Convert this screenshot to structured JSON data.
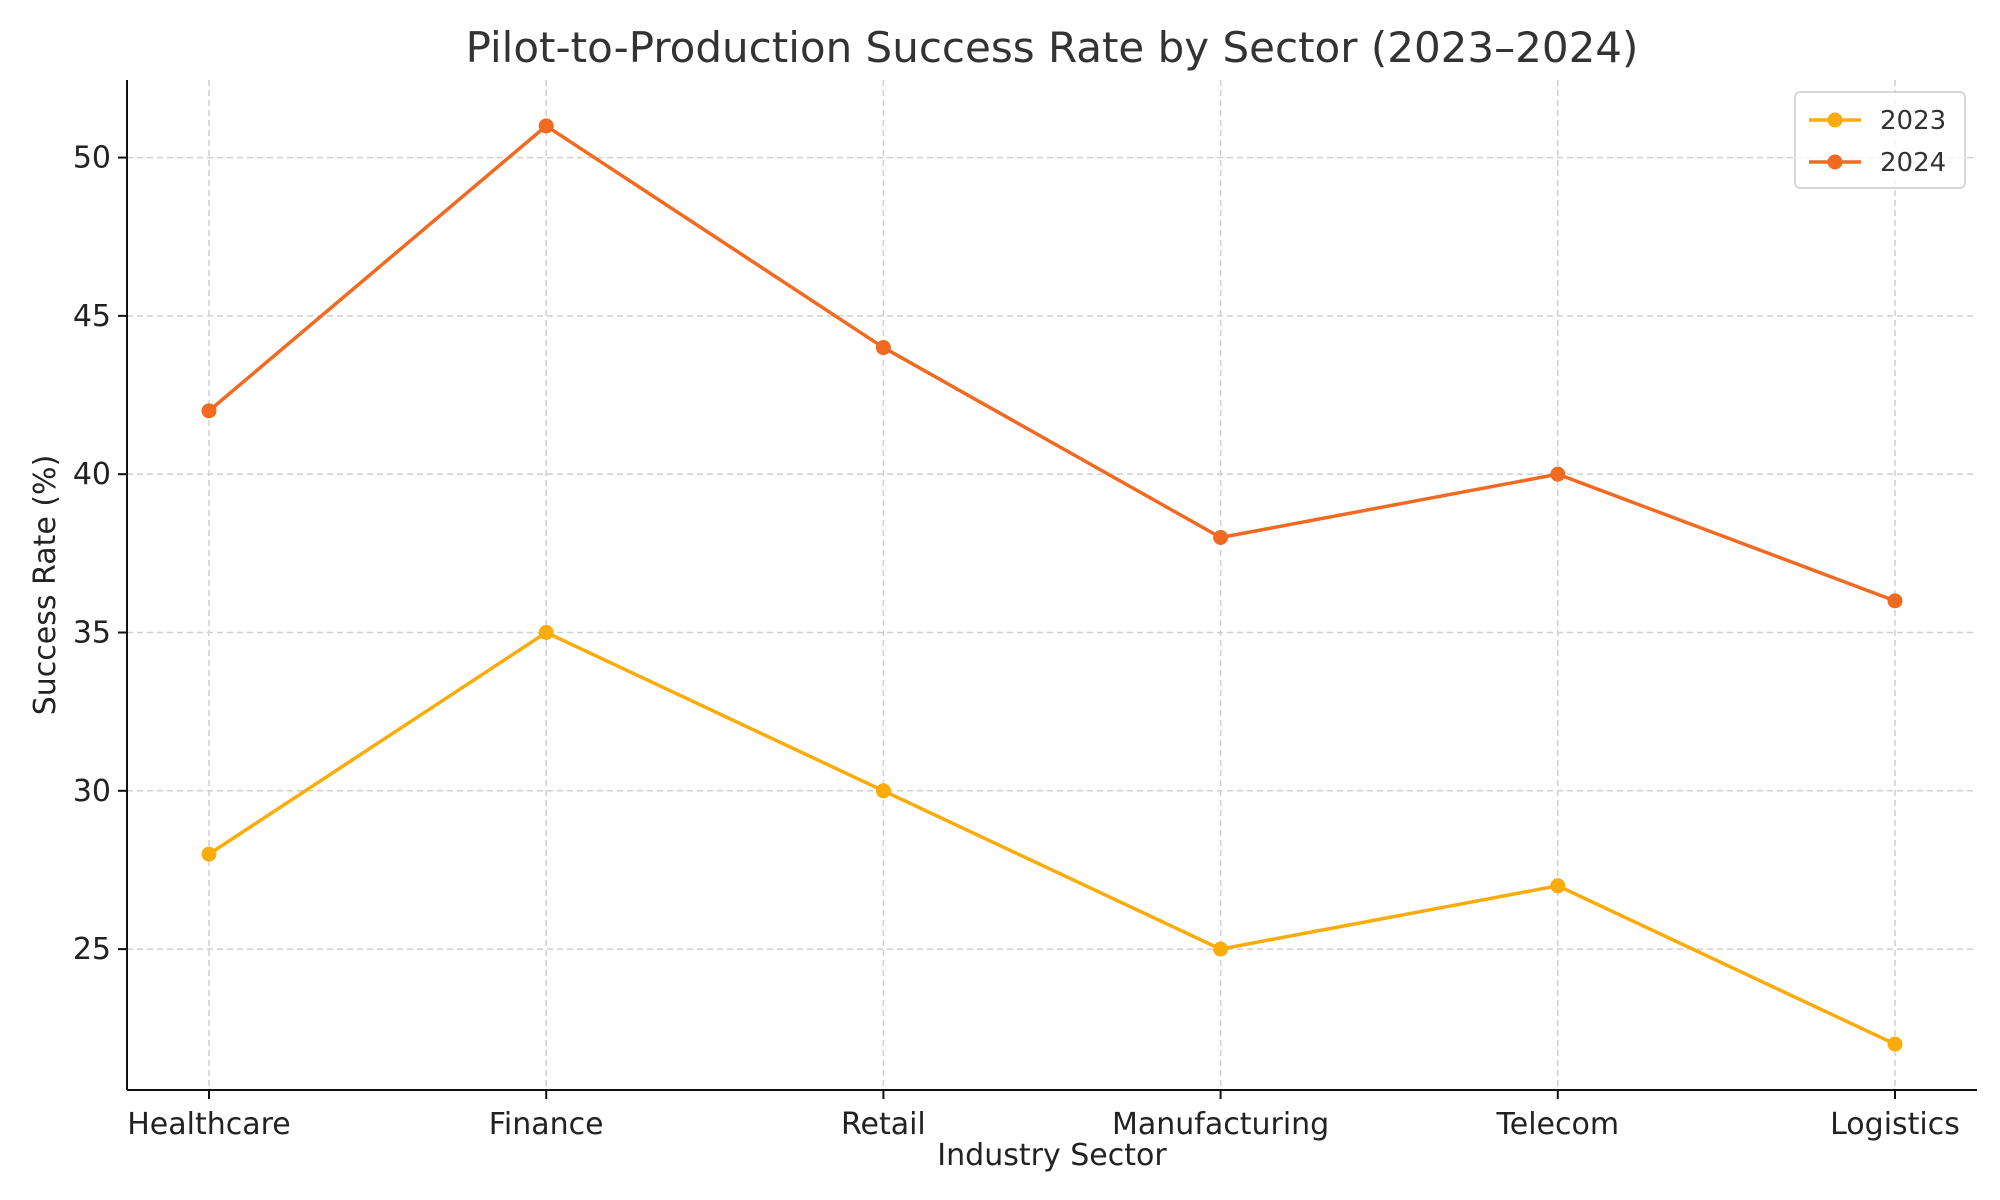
{
  "chart_data": {
    "type": "line",
    "title": "Pilot-to-Production Success Rate by Sector (2023–2024)",
    "xlabel": "Industry Sector",
    "ylabel": "Success Rate (%)",
    "categories": [
      "Healthcare",
      "Finance",
      "Retail",
      "Manufacturing",
      "Telecom",
      "Logistics"
    ],
    "series": [
      {
        "name": "2023",
        "values": [
          28,
          35,
          30,
          25,
          27,
          22
        ],
        "color": "#f9ac0a"
      },
      {
        "name": "2024",
        "values": [
          42,
          51,
          44,
          38,
          40,
          36
        ],
        "color": "#f16a22"
      }
    ],
    "ylim": [
      20.55,
      52.45
    ],
    "yticks": [
      25,
      30,
      35,
      40,
      45,
      50
    ],
    "grid": true,
    "legend_position": "top-right",
    "marker": "circle"
  }
}
